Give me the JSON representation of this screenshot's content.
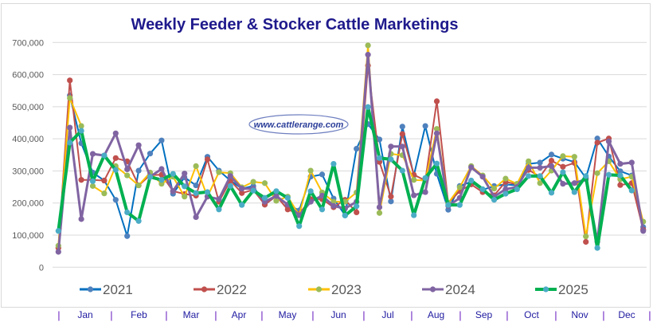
{
  "chart_data": {
    "type": "line",
    "title": "Weekly Feeder & Stocker Cattle Marketings",
    "watermark": "www.cattlerange.com",
    "xlabel": "",
    "ylabel": "",
    "ylim": [
      0,
      700000
    ],
    "yticks": [
      "0",
      "100,000",
      "200,000",
      "300,000",
      "400,000",
      "500,000",
      "600,000",
      "700,000"
    ],
    "grid": true,
    "legend": "bottom",
    "x_weeks": 52,
    "months": [
      "Jan",
      "Feb",
      "Mar",
      "Apr",
      "May",
      "Jun",
      "Jul",
      "Aug",
      "Sep",
      "Oct",
      "Nov",
      "Dec"
    ],
    "month_separator": "|",
    "series": [
      {
        "name": "2021",
        "line_color": "#0070C0",
        "marker_color": "#4F81BD",
        "width": 2,
        "values": [
          null,
          535000,
          386000,
          295000,
          270000,
          210000,
          97000,
          301000,
          354000,
          395000,
          229000,
          280000,
          255000,
          344000,
          301000,
          270000,
          245000,
          253000,
          195000,
          222000,
          195000,
          177000,
          282000,
          289000,
          214000,
          162000,
          369000,
          446000,
          398000,
          205000,
          438000,
          286000,
          440000,
          291000,
          179000,
          253000,
          266000,
          241000,
          253000,
          258000,
          255000,
          322000,
          326000,
          351000,
          338000,
          328000,
          278000,
          401000,
          345000,
          299000,
          286000,
          125000
        ]
      },
      {
        "name": "2022",
        "line_color": "#C0504D",
        "marker_color": "#C0504D",
        "width": 2,
        "values": [
          60000,
          582000,
          272000,
          272000,
          270000,
          340000,
          330000,
          255000,
          287000,
          288000,
          237000,
          228000,
          223000,
          336000,
          204000,
          270000,
          231000,
          241000,
          195000,
          222000,
          180000,
          166000,
          212000,
          212000,
          187000,
          210000,
          171000,
          628000,
          328000,
          220000,
          415000,
          288000,
          270000,
          517000,
          200000,
          237000,
          258000,
          234000,
          224000,
          266000,
          258000,
          303000,
          282000,
          332000,
          313000,
          325000,
          79000,
          388000,
          401000,
          256000,
          262000,
          117000
        ]
      },
      {
        "name": "2023",
        "line_color": "#FFC000",
        "marker_color": "#9BBB59",
        "width": 2,
        "values": [
          67000,
          527000,
          440000,
          253000,
          230000,
          315000,
          286000,
          255000,
          295000,
          260000,
          282000,
          220000,
          315000,
          220000,
          296000,
          293000,
          249000,
          266000,
          262000,
          207000,
          220000,
          162000,
          301000,
          233000,
          204000,
          204000,
          233000,
          691000,
          169000,
          353000,
          349000,
          272000,
          270000,
          431000,
          200000,
          249000,
          315000,
          286000,
          245000,
          276000,
          260000,
          330000,
          262000,
          301000,
          346000,
          344000,
          96000,
          293000,
          330000,
          274000,
          282000,
          142000
        ]
      },
      {
        "name": "2024",
        "line_color": "#8064A2",
        "marker_color": "#8064A2",
        "width": 3,
        "values": [
          48000,
          435000,
          150000,
          353000,
          348000,
          417000,
          305000,
          380000,
          282000,
          306000,
          237000,
          292000,
          156000,
          220000,
          212000,
          284000,
          245000,
          245000,
          204000,
          222000,
          195000,
          162000,
          204000,
          223000,
          191000,
          183000,
          204000,
          662000,
          187000,
          376000,
          376000,
          224000,
          234000,
          417000,
          191000,
          216000,
          311000,
          282000,
          220000,
          243000,
          250000,
          310000,
          310000,
          315000,
          260000,
          262000,
          274000,
          80000,
          392000,
          322000,
          326000,
          113000
        ]
      },
      {
        "name": "2025",
        "line_color": "#00B050",
        "marker_color": "#4BACC6",
        "width": 4,
        "values": [
          113000,
          388000,
          425000,
          268000,
          348000,
          303000,
          171000,
          144000,
          281000,
          272000,
          291000,
          252000,
          231000,
          234000,
          180000,
          253000,
          194000,
          239000,
          216000,
          237000,
          216000,
          128000,
          237000,
          180000,
          322000,
          161000,
          190000,
          499000,
          340000,
          336000,
          301000,
          162000,
          278000,
          323000,
          194000,
          194000,
          270000,
          243000,
          210000,
          229000,
          243000,
          284000,
          284000,
          232000,
          296000,
          234000,
          284000,
          60000,
          288000,
          286000,
          239000,
          null
        ]
      }
    ]
  }
}
